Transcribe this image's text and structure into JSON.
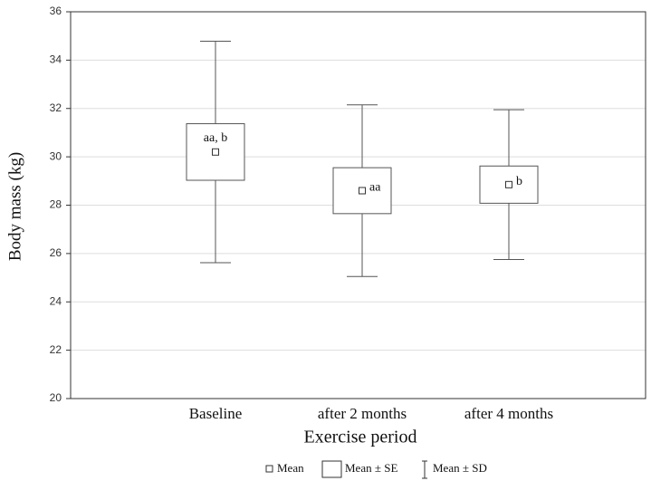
{
  "chart_data": {
    "type": "box",
    "x_label": "Exercise period",
    "y_label": "Body mass (kg)",
    "categories": [
      "Baseline",
      "after 2 months",
      "after 4 months"
    ],
    "means": [
      30.2,
      28.6,
      28.85
    ],
    "se": [
      1.17,
      0.95,
      0.77
    ],
    "sd": [
      4.58,
      3.55,
      3.1
    ],
    "annotations": [
      "aa, b",
      "aa",
      "b"
    ],
    "ylim": [
      20,
      36
    ],
    "yticks": [
      20,
      22,
      24,
      26,
      28,
      30,
      32,
      34,
      36
    ],
    "grid": true,
    "color": "#555555",
    "legend": {
      "mean": "Mean",
      "se": "Mean ± SE",
      "sd": "Mean ± SD"
    }
  }
}
